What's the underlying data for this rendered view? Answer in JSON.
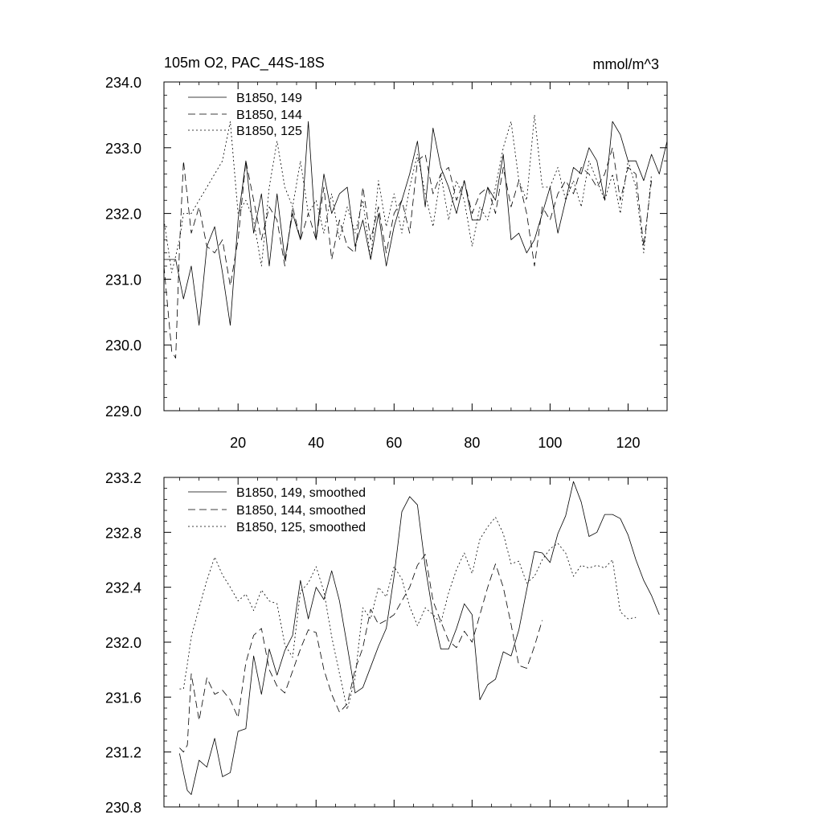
{
  "chart_data": [
    {
      "type": "line",
      "title": "105m O2, PAC_44S-18S",
      "units": "mmol/m^3",
      "xlim": [
        1,
        130
      ],
      "ylim": [
        229.0,
        234.0
      ],
      "xticks": [
        20,
        40,
        60,
        80,
        100,
        120
      ],
      "xtick_labels": [
        "20",
        "40",
        "60",
        "80",
        "100",
        "120"
      ],
      "yticks": [
        229.0,
        230.0,
        231.0,
        232.0,
        233.0,
        234.0
      ],
      "ytick_labels": [
        "229.0",
        "230.0",
        "231.0",
        "232.0",
        "233.0",
        "234.0"
      ],
      "legend_position": "top-left",
      "series": [
        {
          "name": "B1850, 149",
          "style": "solid",
          "x": [
            1,
            4,
            6,
            8,
            10,
            12,
            14,
            16,
            18,
            20,
            22,
            24,
            26,
            28,
            30,
            32,
            34,
            36,
            38,
            40,
            42,
            44,
            46,
            48,
            50,
            52,
            54,
            56,
            58,
            60,
            62,
            64,
            66,
            68,
            70,
            72,
            74,
            76,
            78,
            80,
            82,
            84,
            86,
            88,
            90,
            92,
            94,
            96,
            98,
            100,
            102,
            104,
            106,
            108,
            110,
            112,
            114,
            116,
            118,
            120,
            122,
            124,
            126,
            128,
            130
          ],
          "y": [
            231.3,
            231.3,
            230.7,
            231.2,
            230.3,
            231.5,
            231.8,
            231.1,
            230.3,
            231.9,
            232.8,
            231.7,
            232.3,
            231.2,
            232.3,
            231.3,
            232.0,
            231.6,
            233.4,
            231.6,
            232.6,
            232.0,
            232.3,
            232.4,
            231.5,
            231.9,
            231.3,
            232.0,
            231.2,
            231.8,
            232.2,
            232.6,
            233.1,
            232.1,
            233.3,
            232.7,
            232.4,
            232.0,
            232.5,
            231.9,
            231.9,
            232.4,
            232.2,
            232.9,
            231.6,
            231.7,
            231.4,
            231.6,
            232.0,
            232.4,
            231.7,
            232.2,
            232.7,
            232.6,
            233.0,
            232.8,
            232.2,
            233.4,
            233.2,
            232.8,
            232.8,
            232.5,
            232.9,
            232.6,
            233.1
          ]
        },
        {
          "name": "B1850, 144",
          "style": "dashed",
          "x": [
            1,
            3,
            4,
            5,
            6,
            8,
            10,
            12,
            14,
            16,
            18,
            20,
            22,
            24,
            26,
            28,
            30,
            32,
            34,
            36,
            38,
            40,
            42,
            44,
            46,
            48,
            50,
            52,
            54,
            56,
            58,
            60,
            62,
            64,
            66,
            68,
            70,
            72,
            74,
            76,
            78,
            80,
            82,
            84,
            86,
            88,
            90,
            92,
            94,
            96,
            98,
            100,
            102,
            104,
            106,
            108,
            110,
            112,
            114,
            116,
            118,
            120,
            122,
            124,
            126
          ],
          "y": [
            231.2,
            229.9,
            229.8,
            231.5,
            232.8,
            231.7,
            232.1,
            231.5,
            231.4,
            231.6,
            230.9,
            231.6,
            232.8,
            232.2,
            231.6,
            232.1,
            231.9,
            231.2,
            232.1,
            231.6,
            232.0,
            231.6,
            232.4,
            231.3,
            231.9,
            231.5,
            231.4,
            232.4,
            231.6,
            232.1,
            231.4,
            232.0,
            232.2,
            231.7,
            232.8,
            232.9,
            232.3,
            232.6,
            232.7,
            232.2,
            232.5,
            232.0,
            232.3,
            232.4,
            232.0,
            232.7,
            232.1,
            232.5,
            232.0,
            231.2,
            232.1,
            231.9,
            232.3,
            232.5,
            232.3,
            232.7,
            232.6,
            232.4,
            232.6,
            233.0,
            232.2,
            232.7,
            232.6,
            231.5,
            232.5
          ]
        },
        {
          "name": "B1850, 125",
          "style": "dotted",
          "x": [
            1,
            3,
            5,
            6,
            8,
            10,
            12,
            14,
            16,
            18,
            20,
            22,
            24,
            26,
            28,
            30,
            32,
            34,
            36,
            38,
            40,
            42,
            44,
            46,
            48,
            50,
            52,
            54,
            56,
            58,
            60,
            62,
            64,
            66,
            68,
            70,
            72,
            74,
            76,
            78,
            80,
            82,
            84,
            86,
            88,
            90,
            92,
            94,
            96,
            98,
            100,
            102,
            104,
            106,
            108,
            110,
            112,
            114,
            116,
            118,
            120,
            122,
            124,
            126
          ],
          "y": [
            231.9,
            231.1,
            231.6,
            232.0,
            232.0,
            232.2,
            232.4,
            232.6,
            232.8,
            233.4,
            232.0,
            232.2,
            231.9,
            231.2,
            232.4,
            233.1,
            232.4,
            232.1,
            232.8,
            232.0,
            232.2,
            231.7,
            232.3,
            231.6,
            232.1,
            231.7,
            232.2,
            231.3,
            232.5,
            231.8,
            232.3,
            231.7,
            232.4,
            232.9,
            232.3,
            231.8,
            232.6,
            231.9,
            232.5,
            232.2,
            231.5,
            232.1,
            231.9,
            232.4,
            233.0,
            233.4,
            232.5,
            232.2,
            233.5,
            232.4,
            232.4,
            232.7,
            232.2,
            232.5,
            232.1,
            232.8,
            232.5,
            232.2,
            232.6,
            232.0,
            232.8,
            232.4,
            231.4,
            232.6
          ]
        }
      ]
    },
    {
      "type": "line",
      "xlim": [
        1,
        130
      ],
      "ylim": [
        230.8,
        233.2
      ],
      "xticks": [
        20,
        40,
        60,
        80,
        100,
        120
      ],
      "yticks": [
        230.8,
        231.2,
        231.6,
        232.0,
        232.4,
        232.8,
        233.2
      ],
      "ytick_labels": [
        "230.8",
        "231.2",
        "231.6",
        "232.0",
        "232.4",
        "232.8",
        "233.2"
      ],
      "legend_position": "top-left",
      "series": [
        {
          "name": "B1850, 149, smoothed",
          "style": "solid",
          "x": [
            5,
            6,
            7,
            8,
            10,
            12,
            14,
            16,
            18,
            20,
            22,
            24,
            26,
            28,
            30,
            32,
            34,
            36,
            38,
            40,
            42,
            44,
            46,
            48,
            50,
            52,
            54,
            56,
            58,
            60,
            62,
            64,
            66,
            68,
            70,
            72,
            74,
            76,
            78,
            80,
            82,
            84,
            86,
            88,
            90,
            92,
            94,
            96,
            98,
            100,
            102,
            104,
            106,
            108,
            110,
            112,
            114,
            116,
            118,
            120,
            122,
            124,
            126,
            128
          ],
          "x_note": "",
          "y": [
            231.19,
            231.05,
            230.92,
            230.89,
            231.14,
            231.09,
            231.3,
            231.02,
            231.05,
            231.35,
            231.37,
            231.9,
            231.62,
            231.95,
            231.76,
            231.94,
            232.05,
            232.45,
            232.17,
            232.4,
            232.31,
            232.52,
            232.3,
            231.97,
            231.63,
            231.67,
            231.82,
            231.97,
            232.1,
            232.48,
            232.95,
            233.06,
            233.0,
            232.55,
            232.2,
            231.95,
            231.95,
            232.1,
            232.28,
            232.2,
            231.58,
            231.69,
            231.73,
            231.93,
            231.9,
            232.09,
            232.38,
            232.66,
            232.65,
            232.58,
            232.79,
            232.92,
            233.17,
            233.02,
            232.77,
            232.8,
            232.93,
            232.93,
            232.9,
            232.78,
            232.6,
            232.45,
            232.34,
            232.2
          ]
        },
        {
          "name": "B1850, 144, smoothed",
          "style": "dashed",
          "x": [
            5,
            6,
            7,
            8,
            10,
            12,
            14,
            16,
            18,
            20,
            22,
            24,
            26,
            28,
            30,
            32,
            34,
            36,
            38,
            40,
            42,
            44,
            46,
            48,
            50,
            52,
            54,
            56,
            58,
            60,
            62,
            64,
            66,
            68,
            70,
            72,
            74,
            76,
            78,
            80,
            82,
            84,
            86,
            88,
            90,
            92,
            94,
            96,
            98
          ],
          "y": [
            231.23,
            231.2,
            231.25,
            231.77,
            231.43,
            231.74,
            231.62,
            231.65,
            231.58,
            231.45,
            231.85,
            232.05,
            232.1,
            231.8,
            231.68,
            231.63,
            231.79,
            231.95,
            232.09,
            232.07,
            231.8,
            231.62,
            231.49,
            231.55,
            231.8,
            231.96,
            232.24,
            232.13,
            232.16,
            232.2,
            232.3,
            232.4,
            232.56,
            232.64,
            232.3,
            232.15,
            232.01,
            231.96,
            232.08,
            232.0,
            232.2,
            232.4,
            232.57,
            232.4,
            232.13,
            231.83,
            231.81,
            231.97,
            232.16
          ]
        },
        {
          "name": "B1850, 125, smoothed",
          "style": "dotted",
          "x": [
            5,
            6,
            7,
            8,
            10,
            12,
            14,
            16,
            18,
            20,
            22,
            24,
            26,
            28,
            30,
            32,
            34,
            36,
            38,
            40,
            42,
            44,
            46,
            48,
            50,
            52,
            54,
            56,
            58,
            60,
            62,
            64,
            66,
            68,
            70,
            72,
            74,
            76,
            78,
            80,
            82,
            84,
            86,
            88,
            90,
            92,
            94,
            96,
            98,
            100,
            102,
            104,
            106,
            108,
            110,
            112,
            114,
            116,
            118,
            120,
            122
          ],
          "y": [
            231.66,
            231.66,
            231.84,
            232.04,
            232.25,
            232.45,
            232.62,
            232.49,
            232.4,
            232.3,
            232.35,
            232.23,
            232.38,
            232.3,
            232.28,
            231.98,
            231.89,
            232.37,
            232.43,
            232.55,
            232.37,
            232.04,
            231.77,
            231.51,
            231.74,
            232.25,
            232.17,
            232.4,
            232.33,
            232.55,
            232.46,
            232.26,
            232.12,
            232.25,
            232.2,
            232.14,
            232.36,
            232.53,
            232.65,
            232.5,
            232.75,
            232.84,
            232.91,
            232.79,
            232.57,
            232.59,
            232.43,
            232.48,
            232.6,
            232.68,
            232.72,
            232.65,
            232.48,
            232.56,
            232.54,
            232.56,
            232.54,
            232.6,
            232.22,
            232.17,
            232.18
          ]
        }
      ]
    }
  ]
}
